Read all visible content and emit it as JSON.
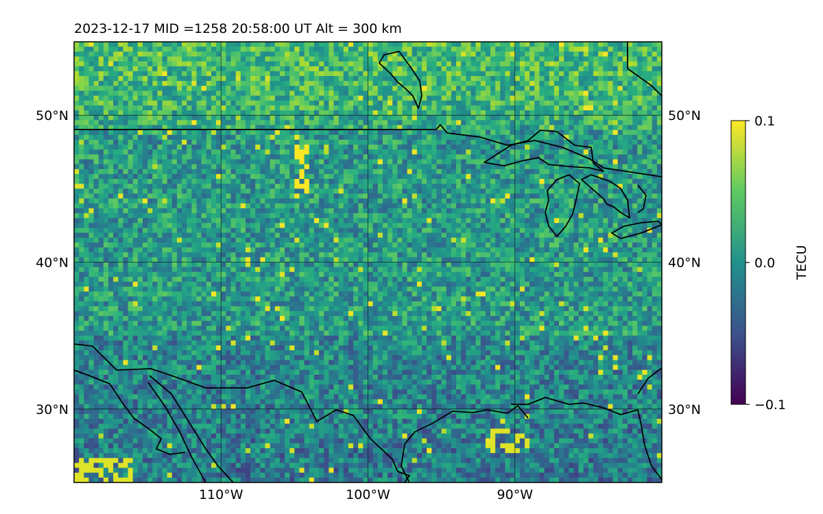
{
  "figure": {
    "title": "2023-12-17  MID =1258    20:58:00  UT  Alt = 300 km"
  },
  "chart_data": {
    "type": "heatmap",
    "title": "2023-12-17  MID =1258    20:58:00  UT  Alt = 300 km",
    "projection": "plate carree (longitude/latitude)",
    "x": {
      "label": "",
      "units": "degrees longitude",
      "range": [
        -120,
        -80
      ],
      "ticks": [
        -110,
        -100,
        -90
      ],
      "tick_labels": [
        "110°W",
        "100°W",
        "90°W"
      ]
    },
    "y": {
      "label": "",
      "units": "degrees latitude",
      "range": [
        25,
        55
      ],
      "ticks": [
        30,
        40,
        50
      ],
      "tick_labels": [
        "30°N",
        "40°N",
        "50°N"
      ],
      "labels_on": [
        "left",
        "right"
      ]
    },
    "grid": true,
    "colormap": "viridis",
    "colorbar": {
      "label": "TECU",
      "range": [
        -0.1,
        0.1
      ],
      "ticks": [
        0.1,
        0.0,
        -0.1
      ],
      "tick_labels": [
        "0.1",
        "0.0",
        "−0.1"
      ]
    },
    "overlay": "coastlines, country borders and Great Lakes outlines (black)",
    "notable_features": [
      {
        "desc": "high positive values (yellow) in the far south-west corner",
        "lon": [
          -120,
          -116
        ],
        "lat": [
          25,
          26.5
        ],
        "value": 0.09
      },
      {
        "desc": "isolated yellow cells over the northern plains",
        "lon": [
          -105,
          -104
        ],
        "lat": [
          44.5,
          48
        ],
        "value": 0.1
      },
      {
        "desc": "yellow cells near the Texas Gulf coast",
        "lon": [
          -92,
          -89
        ],
        "lat": [
          27,
          28.5
        ],
        "value": 0.09
      }
    ]
  }
}
